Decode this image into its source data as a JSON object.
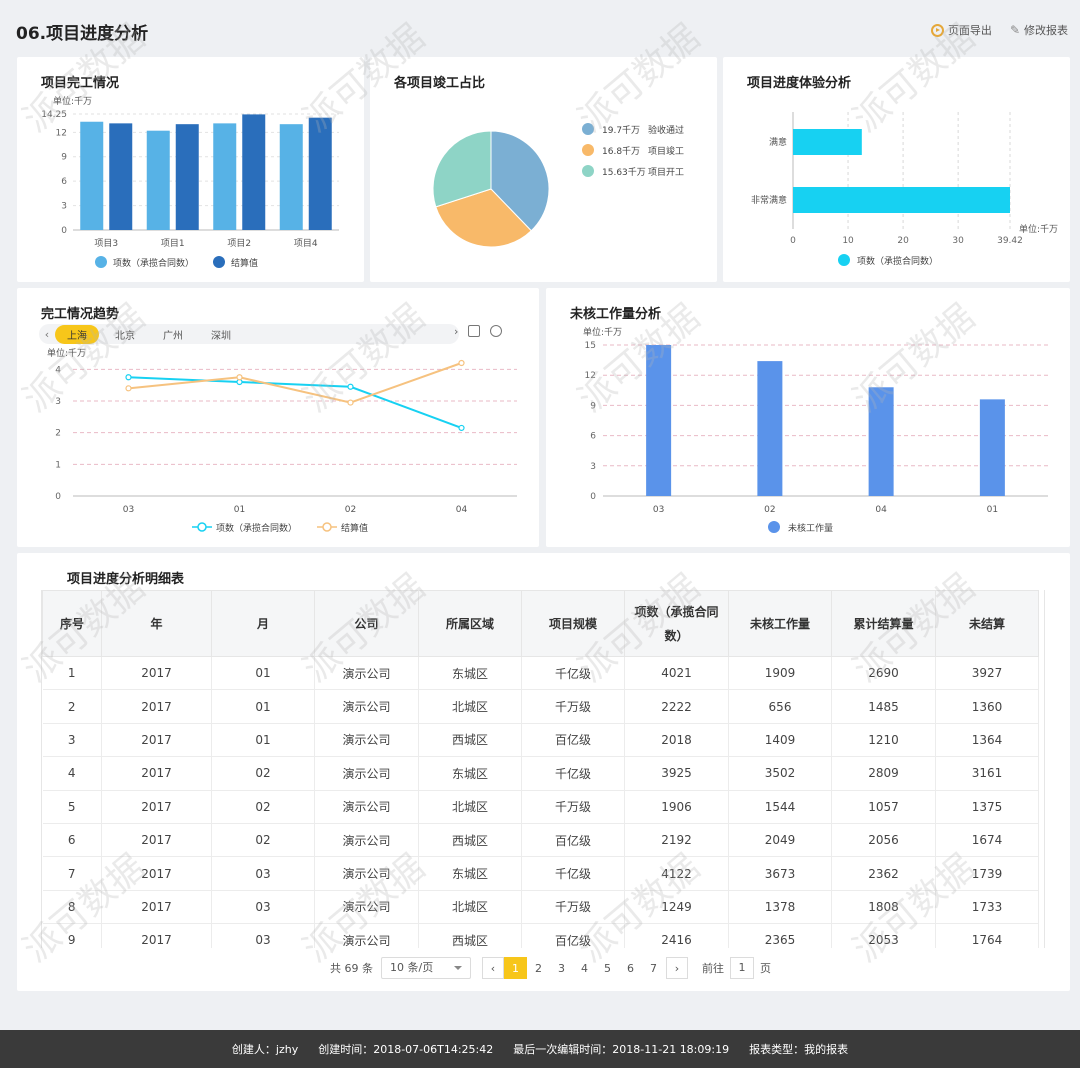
{
  "header": {
    "title": "06.项目进度分析",
    "export_label": "页面导出",
    "edit_label": "修改报表"
  },
  "colors": {
    "light_blue": "#57b2e6",
    "dark_blue": "#2a6ebb",
    "pie_blue": "#7bafd3",
    "pie_orange": "#f8b969",
    "pie_teal": "#8ed4c6",
    "cyan": "#17d1f2",
    "line_orange": "#f6c27f",
    "bar_blue": "#5a93ea",
    "accent": "#f7c61a"
  },
  "watermark_text": "派可数据",
  "chart_data": [
    {
      "type": "bar",
      "title": "项目完工情况",
      "unit_label": "单位:千万",
      "categories": [
        "项目3",
        "项目1",
        "项目2",
        "项目4"
      ],
      "series": [
        {
          "name": "项数（承揽合同数）",
          "values": [
            13.3,
            12.2,
            13.1,
            13.0
          ]
        },
        {
          "name": "结算值",
          "values": [
            13.1,
            13.0,
            14.2,
            13.8
          ]
        }
      ],
      "ylim": [
        0,
        14.25
      ],
      "yticks": [
        "0",
        "3",
        "6",
        "9",
        "12",
        "14.25"
      ]
    },
    {
      "type": "pie",
      "title": "各项目竣工占比",
      "slices": [
        {
          "name": "验收通过",
          "value": 19.7,
          "label": "19.7千万"
        },
        {
          "name": "项目竣工",
          "value": 16.8,
          "label": "16.8千万"
        },
        {
          "name": "项目开工",
          "value": 15.63,
          "label": "15.63千万"
        }
      ]
    },
    {
      "type": "bar",
      "orientation": "horizontal",
      "title": "项目进度体验分析",
      "unit_label": "单位:千万",
      "categories": [
        "满意",
        "非常满意"
      ],
      "series": [
        {
          "name": "项数（承揽合同数）",
          "values": [
            12.5,
            39.42
          ]
        }
      ],
      "xlim": [
        0,
        39.42
      ],
      "xticks": [
        "0",
        "10",
        "20",
        "30",
        "39.42"
      ]
    },
    {
      "type": "line",
      "title": "完工情况趋势",
      "unit_label": "单位:千万",
      "tabs": [
        "上海",
        "北京",
        "广州",
        "深圳"
      ],
      "active_tab": "上海",
      "categories": [
        "03",
        "01",
        "02",
        "04"
      ],
      "series": [
        {
          "name": "项数（承揽合同数）",
          "values": [
            3.75,
            3.6,
            3.45,
            2.15
          ]
        },
        {
          "name": "结算值",
          "values": [
            3.4,
            3.75,
            2.95,
            4.2
          ]
        }
      ],
      "ylim": [
        0,
        4.2
      ],
      "yticks": [
        "0",
        "1",
        "2",
        "3",
        "4"
      ]
    },
    {
      "type": "bar",
      "title": "未核工作量分析",
      "unit_label": "单位:千万",
      "categories": [
        "03",
        "02",
        "04",
        "01"
      ],
      "series": [
        {
          "name": "未核工作量",
          "values": [
            15,
            13.4,
            10.8,
            9.6
          ]
        }
      ],
      "ylim": [
        0,
        15
      ],
      "yticks": [
        "0",
        "3",
        "6",
        "9",
        "12",
        "15"
      ]
    }
  ],
  "table": {
    "title": "项目进度分析明细表",
    "columns": [
      "序号",
      "年",
      "月",
      "公司",
      "所属区域",
      "项目规模",
      "项数（承揽合同数）",
      "未核工作量",
      "累计结算量",
      "未结算"
    ],
    "rows": [
      [
        "1",
        "2017",
        "01",
        "演示公司",
        "东城区",
        "千亿级",
        "4021",
        "1909",
        "2690",
        "3927"
      ],
      [
        "2",
        "2017",
        "01",
        "演示公司",
        "北城区",
        "千万级",
        "2222",
        "656",
        "1485",
        "1360"
      ],
      [
        "3",
        "2017",
        "01",
        "演示公司",
        "西城区",
        "百亿级",
        "2018",
        "1409",
        "1210",
        "1364"
      ],
      [
        "4",
        "2017",
        "02",
        "演示公司",
        "东城区",
        "千亿级",
        "3925",
        "3502",
        "2809",
        "3161"
      ],
      [
        "5",
        "2017",
        "02",
        "演示公司",
        "北城区",
        "千万级",
        "1906",
        "1544",
        "1057",
        "1375"
      ],
      [
        "6",
        "2017",
        "02",
        "演示公司",
        "西城区",
        "百亿级",
        "2192",
        "2049",
        "2056",
        "1674"
      ],
      [
        "7",
        "2017",
        "03",
        "演示公司",
        "东城区",
        "千亿级",
        "4122",
        "3673",
        "2362",
        "1739"
      ],
      [
        "8",
        "2017",
        "03",
        "演示公司",
        "北城区",
        "千万级",
        "1249",
        "1378",
        "1808",
        "1733"
      ],
      [
        "9",
        "2017",
        "03",
        "演示公司",
        "西城区",
        "百亿级",
        "2416",
        "2365",
        "2053",
        "1764"
      ]
    ]
  },
  "pager": {
    "total": "共 69 条",
    "page_size": "10 条/页",
    "pages": [
      "1",
      "2",
      "3",
      "4",
      "5",
      "6",
      "7"
    ],
    "current": "1",
    "goto_label": "前往",
    "goto_value": "1",
    "page_suffix": "页"
  },
  "footer": {
    "creator": "创建人：jzhy",
    "created": "创建时间：2018-07-06T14:25:42",
    "edited": "最后一次编辑时间：2018-11-21 18:09:19",
    "type": "报表类型：我的报表"
  }
}
